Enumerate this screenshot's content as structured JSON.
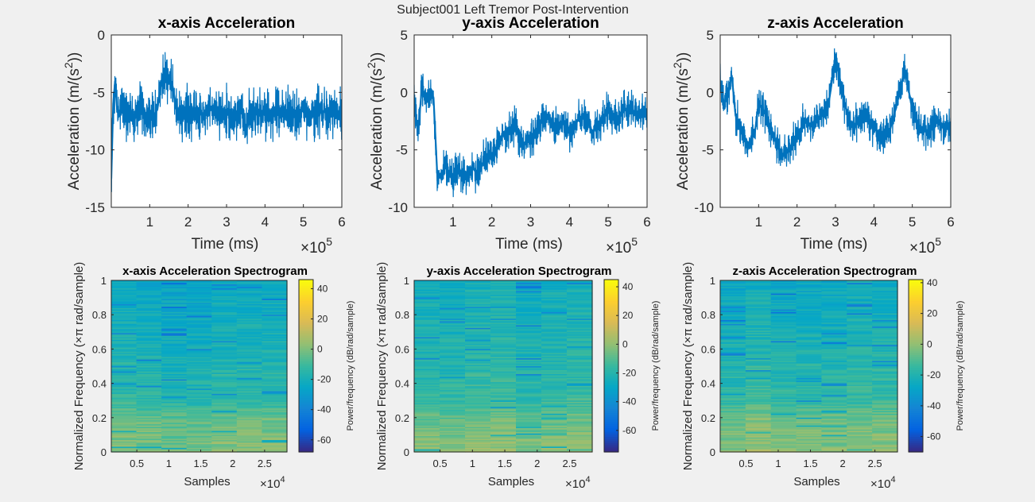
{
  "figure": {
    "suptitle": "Subject001 Left Tremor Post-Intervention"
  },
  "colors": {
    "trace": "#0072BD",
    "background": "#f0f0f0",
    "axes_face": "#ffffff",
    "parula": [
      "#352a87",
      "#0363e1",
      "#1485d4",
      "#06a7c6",
      "#38b99e",
      "#92bf73",
      "#d9ba56",
      "#fcce2e",
      "#f9fb0e"
    ]
  },
  "chart_data": [
    {
      "type": "line",
      "title": "x-axis Acceleration",
      "xlabel": "Time (ms)",
      "ylabel": "Acceleration (m/(s²))",
      "ylabel_main": "Acceleration (m/(s",
      "ylabel_sup": "2",
      "ylabel_end": "))",
      "x_exponent_base": "×10",
      "x_exponent": "5",
      "xlim": [
        0,
        6
      ],
      "ylim": [
        -15,
        0
      ],
      "xticks": [
        1,
        2,
        3,
        4,
        5,
        6
      ],
      "xticklabels": [
        "1",
        "2",
        "3",
        "4",
        "5",
        "6"
      ],
      "yticks": [
        0,
        -5,
        -10,
        -15
      ],
      "yticklabels": [
        "0",
        "-5",
        "-10",
        "-15"
      ],
      "series": [
        {
          "x": [
            0.0,
            0.05,
            0.1,
            0.15,
            0.2,
            0.3,
            0.4,
            0.5,
            0.6,
            0.7,
            0.8,
            0.9,
            1.0,
            1.1,
            1.2,
            1.3,
            1.4,
            1.5,
            1.6,
            1.7,
            1.8,
            1.9,
            2.0,
            2.2,
            2.4,
            2.6,
            2.8,
            3.0,
            3.2,
            3.4,
            3.5,
            3.6,
            3.8,
            4.0,
            4.2,
            4.4,
            4.6,
            4.8,
            5.0,
            5.2,
            5.4,
            5.6,
            5.8,
            6.0
          ],
          "y": [
            -12.5,
            -6.0,
            -4.0,
            -6.5,
            -7.0,
            -6.0,
            -7.0,
            -6.5,
            -7.5,
            -6.0,
            -6.5,
            -7.0,
            -7.5,
            -7.0,
            -6.5,
            -4.0,
            -3.5,
            -3.5,
            -4.5,
            -6.5,
            -7.0,
            -6.5,
            -7.0,
            -6.8,
            -7.0,
            -6.5,
            -7.0,
            -6.8,
            -7.2,
            -6.5,
            -8.5,
            -7.0,
            -6.5,
            -7.0,
            -7.0,
            -6.8,
            -6.5,
            -7.0,
            -6.5,
            -7.2,
            -6.5,
            -6.8,
            -7.0,
            -7.0
          ]
        }
      ]
    },
    {
      "type": "line",
      "title": "y-axis Acceleration",
      "xlabel": "Time (ms)",
      "ylabel": "Acceleration (m/(s²))",
      "ylabel_main": "Acceleration (m/(s",
      "ylabel_sup": "2",
      "ylabel_end": "))",
      "x_exponent_base": "×10",
      "x_exponent": "5",
      "xlim": [
        0,
        6
      ],
      "ylim": [
        -10,
        5
      ],
      "xticks": [
        1,
        2,
        3,
        4,
        5,
        6
      ],
      "xticklabels": [
        "1",
        "2",
        "3",
        "4",
        "5",
        "6"
      ],
      "yticks": [
        5,
        0,
        -5,
        -10
      ],
      "yticklabels": [
        "5",
        "0",
        "-5",
        "-10"
      ],
      "series": [
        {
          "x": [
            0.0,
            0.1,
            0.2,
            0.3,
            0.4,
            0.5,
            0.6,
            0.7,
            0.8,
            0.9,
            1.0,
            1.1,
            1.2,
            1.3,
            1.4,
            1.5,
            1.6,
            1.7,
            1.8,
            1.9,
            2.0,
            2.1,
            2.2,
            2.4,
            2.6,
            2.8,
            3.0,
            3.2,
            3.4,
            3.6,
            3.8,
            4.0,
            4.2,
            4.4,
            4.6,
            4.8,
            5.0,
            5.2,
            5.4,
            5.6,
            5.8,
            6.0
          ],
          "y": [
            -1.0,
            -3.5,
            0.5,
            -0.5,
            0.0,
            -0.5,
            -7.5,
            -7.0,
            -6.5,
            -7.0,
            -7.5,
            -6.5,
            -7.0,
            -7.5,
            -7.0,
            -6.5,
            -7.0,
            -6.5,
            -6.0,
            -5.5,
            -5.5,
            -5.0,
            -4.0,
            -3.5,
            -3.0,
            -4.5,
            -4.0,
            -3.0,
            -2.0,
            -3.0,
            -2.5,
            -3.5,
            -2.5,
            -2.0,
            -3.5,
            -2.5,
            -1.5,
            -2.5,
            -1.5,
            -1.5,
            -2.0,
            -2.0
          ]
        }
      ]
    },
    {
      "type": "line",
      "title": "z-axis Acceleration",
      "xlabel": "Time (ms)",
      "ylabel": "Acceleration (m/(s²))",
      "ylabel_main": "Acceleration (m/(s",
      "ylabel_sup": "2",
      "ylabel_end": "))",
      "x_exponent_base": "×10",
      "x_exponent": "5",
      "xlim": [
        0,
        6
      ],
      "ylim": [
        -10,
        5
      ],
      "xticks": [
        1,
        2,
        3,
        4,
        5,
        6
      ],
      "xticklabels": [
        "1",
        "2",
        "3",
        "4",
        "5",
        "6"
      ],
      "yticks": [
        5,
        0,
        -5,
        -10
      ],
      "yticklabels": [
        "5",
        "0",
        "-5",
        "-10"
      ],
      "series": [
        {
          "x": [
            0.0,
            0.1,
            0.2,
            0.3,
            0.4,
            0.5,
            0.6,
            0.7,
            0.8,
            0.9,
            1.0,
            1.2,
            1.4,
            1.6,
            1.8,
            2.0,
            2.2,
            2.4,
            2.6,
            2.8,
            3.0,
            3.1,
            3.2,
            3.4,
            3.6,
            3.8,
            4.0,
            4.2,
            4.4,
            4.6,
            4.8,
            5.0,
            5.2,
            5.4,
            5.6,
            5.8,
            6.0
          ],
          "y": [
            1.0,
            -1.0,
            0.0,
            1.5,
            -2.0,
            -3.0,
            -3.5,
            -5.0,
            -4.0,
            -3.5,
            -1.0,
            -2.0,
            -4.0,
            -5.5,
            -5.0,
            -4.0,
            -2.5,
            -3.0,
            -2.0,
            -1.5,
            3.0,
            1.5,
            -0.5,
            -3.0,
            -2.5,
            -2.0,
            -3.0,
            -4.0,
            -3.5,
            -1.0,
            2.0,
            -1.5,
            -3.0,
            -3.5,
            -2.5,
            -3.0,
            -3.0
          ]
        }
      ]
    },
    {
      "type": "heatmap",
      "title": "x-axis Acceleration Spectrogram",
      "xlabel": "Samples",
      "ylabel": "Normalized Frequency  (×π rad/sample)",
      "x_exponent_base": "×10",
      "x_exponent": "4",
      "xlim": [
        1000,
        28500
      ],
      "ylim": [
        0,
        1
      ],
      "xticks": [
        5000,
        10000,
        15000,
        20000,
        25000
      ],
      "xticklabels": [
        "0.5",
        "1",
        "1.5",
        "2",
        "2.5"
      ],
      "yticks": [
        0,
        0.2,
        0.4,
        0.6,
        0.8,
        1
      ],
      "yticklabels": [
        "0",
        "0.2",
        "0.4",
        "0.6",
        "0.8",
        "1"
      ],
      "time_segments": 7,
      "mean_power_db_by_frequency": [
        {
          "f": 0.0,
          "db": 0
        },
        {
          "f": 0.2,
          "db": -5
        },
        {
          "f": 0.3,
          "db": -15
        },
        {
          "f": 0.5,
          "db": -18
        },
        {
          "f": 0.7,
          "db": -22
        },
        {
          "f": 1.0,
          "db": -25
        }
      ],
      "colorbar": {
        "label": "Power/frequency (dB/rad/sample)",
        "range": [
          -68,
          46
        ],
        "ticks": [
          40,
          20,
          0,
          -20,
          -40,
          -60
        ],
        "ticklabels": [
          "40",
          "20",
          "0",
          "-20",
          "-40",
          "-60"
        ]
      }
    },
    {
      "type": "heatmap",
      "title": "y-axis Acceleration Spectrogram",
      "xlabel": "Samples",
      "ylabel": "Normalized Frequency  (×π rad/sample)",
      "x_exponent_base": "×10",
      "x_exponent": "4",
      "xlim": [
        1000,
        28500
      ],
      "ylim": [
        0,
        1
      ],
      "xticks": [
        5000,
        10000,
        15000,
        20000,
        25000
      ],
      "xticklabels": [
        "0.5",
        "1",
        "1.5",
        "2",
        "2.5"
      ],
      "yticks": [
        0,
        0.2,
        0.4,
        0.6,
        0.8,
        1
      ],
      "yticklabels": [
        "0",
        "0.2",
        "0.4",
        "0.6",
        "0.8",
        "1"
      ],
      "time_segments": 7,
      "mean_power_db_by_frequency": [
        {
          "f": 0.0,
          "db": 0
        },
        {
          "f": 0.2,
          "db": -8
        },
        {
          "f": 0.3,
          "db": -15
        },
        {
          "f": 0.5,
          "db": -20
        },
        {
          "f": 0.7,
          "db": -22
        },
        {
          "f": 1.0,
          "db": -26
        }
      ],
      "colorbar": {
        "label": "Power/frequency (dB/rad/sample)",
        "range": [
          -75,
          45
        ],
        "ticks": [
          40,
          20,
          0,
          -20,
          -40,
          -60
        ],
        "ticklabels": [
          "40",
          "20",
          "0",
          "-20",
          "-40",
          "-60"
        ]
      }
    },
    {
      "type": "heatmap",
      "title": "z-axis Acceleration Spectrogram",
      "xlabel": "Samples",
      "ylabel": "Normalized Frequency  (×π rad/sample)",
      "x_exponent_base": "×10",
      "x_exponent": "4",
      "xlim": [
        1000,
        28500
      ],
      "ylim": [
        0,
        1
      ],
      "xticks": [
        5000,
        10000,
        15000,
        20000,
        25000
      ],
      "xticklabels": [
        "0.5",
        "1",
        "1.5",
        "2",
        "2.5"
      ],
      "yticks": [
        0,
        0.2,
        0.4,
        0.6,
        0.8,
        1
      ],
      "yticklabels": [
        "0",
        "0.2",
        "0.4",
        "0.6",
        "0.8",
        "1"
      ],
      "time_segments": 7,
      "mean_power_db_by_frequency": [
        {
          "f": 0.0,
          "db": 0
        },
        {
          "f": 0.2,
          "db": -6
        },
        {
          "f": 0.3,
          "db": -15
        },
        {
          "f": 0.5,
          "db": -18
        },
        {
          "f": 0.7,
          "db": -22
        },
        {
          "f": 1.0,
          "db": -26
        }
      ],
      "colorbar": {
        "label": "Power/frequency (dB/rad/sample)",
        "range": [
          -70,
          42
        ],
        "ticks": [
          40,
          20,
          0,
          -20,
          -40,
          -60
        ],
        "ticklabels": [
          "40",
          "20",
          "0",
          "-20",
          "-40",
          "-60"
        ]
      }
    }
  ]
}
